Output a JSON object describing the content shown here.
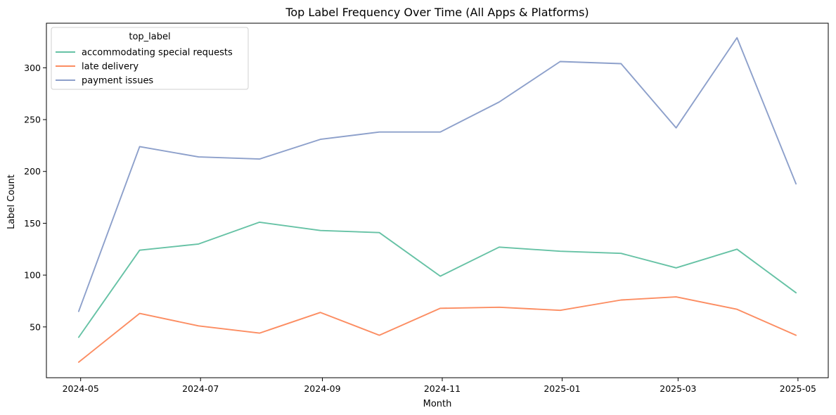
{
  "chart_data": {
    "type": "line",
    "title": "Top Label Frequency Over Time (All Apps & Platforms)",
    "xlabel": "Month",
    "ylabel": "Label Count",
    "x": [
      "2024-04-30",
      "2024-05-31",
      "2024-06-30",
      "2024-07-31",
      "2024-08-31",
      "2024-09-30",
      "2024-10-31",
      "2024-11-30",
      "2024-12-31",
      "2025-01-31",
      "2025-02-28",
      "2025-03-31",
      "2025-04-30"
    ],
    "x_ticks": [
      "2024-05",
      "2024-07",
      "2024-09",
      "2024-11",
      "2025-01",
      "2025-03",
      "2025-05"
    ],
    "x_tick_dates": [
      "2024-05-01",
      "2024-07-01",
      "2024-09-01",
      "2024-11-01",
      "2025-01-01",
      "2025-03-01",
      "2025-05-01"
    ],
    "y_ticks": [
      50,
      100,
      150,
      200,
      250,
      300
    ],
    "ylim": [
      1,
      343
    ],
    "grid": false,
    "legend": {
      "title": "top_label",
      "placement": "top-left"
    },
    "series": [
      {
        "name": "accommodating special requests",
        "color": "#66c2a5",
        "values": [
          40,
          124,
          130,
          151,
          143,
          141,
          99,
          127,
          123,
          121,
          107,
          125,
          83
        ]
      },
      {
        "name": "late delivery",
        "color": "#fc8d62",
        "values": [
          16,
          63,
          51,
          44,
          64,
          42,
          68,
          69,
          66,
          76,
          79,
          67,
          42
        ]
      },
      {
        "name": "payment issues",
        "color": "#8da0cb",
        "values": [
          65,
          224,
          214,
          212,
          231,
          238,
          238,
          267,
          306,
          304,
          242,
          329,
          188
        ]
      }
    ]
  }
}
